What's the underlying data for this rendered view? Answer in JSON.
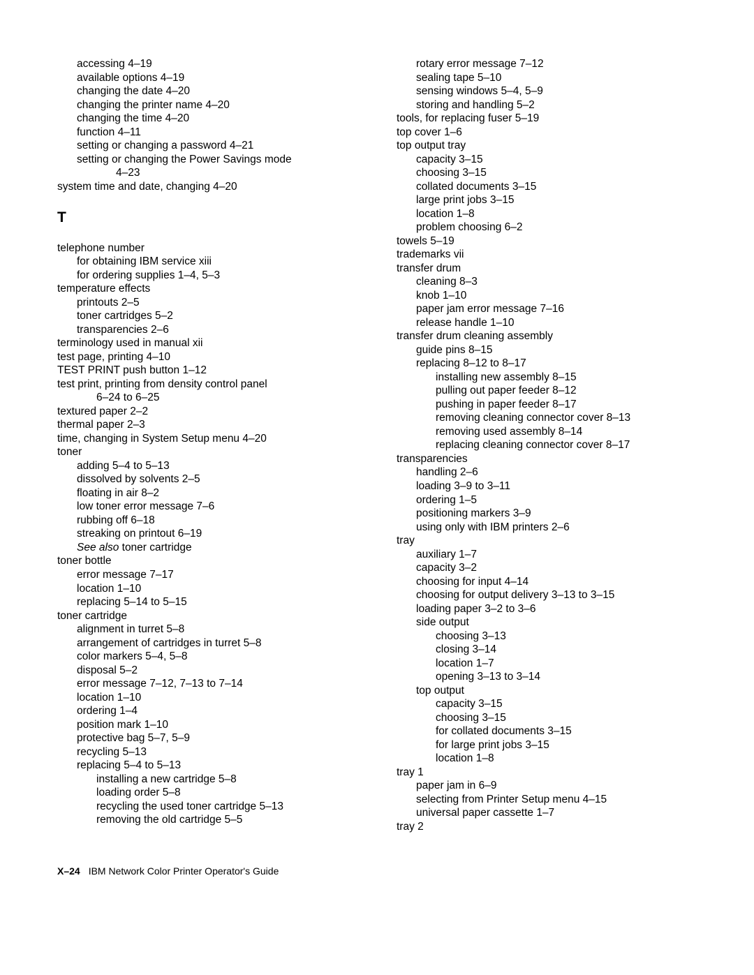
{
  "footer": {
    "page_number": "X–24",
    "title": "IBM Network Color Printer Operator's Guide"
  },
  "section_letter": "T",
  "left_block_1": [
    {
      "l": 1,
      "t": "accessing 4–19"
    },
    {
      "l": 1,
      "t": "available options 4–19"
    },
    {
      "l": 1,
      "t": "changing the date 4–20"
    },
    {
      "l": 1,
      "t": "changing the printer name 4–20"
    },
    {
      "l": 1,
      "t": "changing the time 4–20"
    },
    {
      "l": 1,
      "t": "function 4–11"
    },
    {
      "l": 1,
      "t": "setting or changing a password 4–21"
    },
    {
      "l": 1,
      "t": "setting or changing the Power Savings mode"
    },
    {
      "l": 3,
      "t": "4–23"
    },
    {
      "l": 0,
      "t": "system time and date, changing 4–20"
    }
  ],
  "left_block_2": [
    {
      "l": 0,
      "t": "telephone number"
    },
    {
      "l": 1,
      "t": "for obtaining IBM service xiii"
    },
    {
      "l": 1,
      "t": "for ordering supplies 1–4, 5–3"
    },
    {
      "l": 0,
      "t": "temperature effects"
    },
    {
      "l": 1,
      "t": "printouts 2–5"
    },
    {
      "l": 1,
      "t": "toner cartridges 5–2"
    },
    {
      "l": 1,
      "t": "transparencies 2–6"
    },
    {
      "l": 0,
      "t": "terminology used in manual xii"
    },
    {
      "l": 0,
      "t": "test page, printing 4–10"
    },
    {
      "l": 0,
      "t": "TEST PRINT push button 1–12"
    },
    {
      "l": 0,
      "t": "test print, printing from density control panel"
    },
    {
      "l": 2,
      "t": "6–24 to 6–25"
    },
    {
      "l": 0,
      "t": "textured paper 2–2"
    },
    {
      "l": 0,
      "t": "thermal paper 2–3"
    },
    {
      "l": 0,
      "t": "time, changing in System Setup menu 4–20"
    },
    {
      "l": 0,
      "t": "toner"
    },
    {
      "l": 1,
      "t": "adding 5–4 to 5–13"
    },
    {
      "l": 1,
      "t": "dissolved by solvents 2–5"
    },
    {
      "l": 1,
      "t": "floating in air 8–2"
    },
    {
      "l": 1,
      "t": "low toner error message 7–6"
    },
    {
      "l": 1,
      "t": "rubbing off 6–18"
    },
    {
      "l": 1,
      "t": "streaking on printout 6–19"
    },
    {
      "l": 1,
      "italic_prefix": "See also",
      "t": " toner cartridge"
    },
    {
      "l": 0,
      "t": "toner bottle"
    },
    {
      "l": 1,
      "t": "error message 7–17"
    },
    {
      "l": 1,
      "t": "location 1–10"
    },
    {
      "l": 1,
      "t": "replacing 5–14 to 5–15"
    },
    {
      "l": 0,
      "t": "toner cartridge"
    },
    {
      "l": 1,
      "t": "alignment in turret 5–8"
    },
    {
      "l": 1,
      "t": "arrangement of cartridges in turret 5–8"
    },
    {
      "l": 1,
      "t": "color markers 5–4, 5–8"
    },
    {
      "l": 1,
      "t": "disposal 5–2"
    },
    {
      "l": 1,
      "t": "error message 7–12, 7–13 to 7–14"
    },
    {
      "l": 1,
      "t": "location 1–10"
    },
    {
      "l": 1,
      "t": "ordering 1–4"
    },
    {
      "l": 1,
      "t": "position mark 1–10"
    },
    {
      "l": 1,
      "t": "protective bag 5–7, 5–9"
    },
    {
      "l": 1,
      "t": "recycling 5–13"
    },
    {
      "l": 1,
      "t": "replacing 5–4 to 5–13"
    },
    {
      "l": 2,
      "t": "installing a new cartridge 5–8"
    },
    {
      "l": 2,
      "t": "loading order 5–8"
    },
    {
      "l": 2,
      "t": "recycling the used toner cartridge 5–13"
    },
    {
      "l": 2,
      "t": "removing the old cartridge 5–5"
    }
  ],
  "right_block": [
    {
      "l": 1,
      "t": "rotary error message 7–12"
    },
    {
      "l": 1,
      "t": "sealing tape 5–10"
    },
    {
      "l": 1,
      "t": "sensing windows 5–4, 5–9"
    },
    {
      "l": 1,
      "t": "storing and handling 5–2"
    },
    {
      "l": 0,
      "t": "tools, for replacing fuser 5–19"
    },
    {
      "l": 0,
      "t": "top cover 1–6"
    },
    {
      "l": 0,
      "t": "top output tray"
    },
    {
      "l": 1,
      "t": "capacity 3–15"
    },
    {
      "l": 1,
      "t": "choosing 3–15"
    },
    {
      "l": 1,
      "t": "collated documents 3–15"
    },
    {
      "l": 1,
      "t": "large print jobs 3–15"
    },
    {
      "l": 1,
      "t": "location 1–8"
    },
    {
      "l": 1,
      "t": "problem choosing 6–2"
    },
    {
      "l": 0,
      "t": "towels 5–19"
    },
    {
      "l": 0,
      "t": "trademarks vii"
    },
    {
      "l": 0,
      "t": "transfer drum"
    },
    {
      "l": 1,
      "t": "cleaning 8–3"
    },
    {
      "l": 1,
      "t": "knob 1–10"
    },
    {
      "l": 1,
      "t": "paper jam error message 7–16"
    },
    {
      "l": 1,
      "t": "release handle 1–10"
    },
    {
      "l": 0,
      "t": "transfer drum cleaning assembly"
    },
    {
      "l": 1,
      "t": "guide pins 8–15"
    },
    {
      "l": 1,
      "t": "replacing 8–12 to 8–17"
    },
    {
      "l": 2,
      "t": "installing new assembly 8–15"
    },
    {
      "l": 2,
      "t": "pulling out paper feeder 8–12"
    },
    {
      "l": 2,
      "t": "pushing in paper feeder 8–17"
    },
    {
      "l": 2,
      "t": "removing cleaning connector cover 8–13"
    },
    {
      "l": 2,
      "t": "removing used assembly 8–14"
    },
    {
      "l": 2,
      "t": "replacing cleaning connector cover 8–17"
    },
    {
      "l": 0,
      "t": "transparencies"
    },
    {
      "l": 1,
      "t": "handling 2–6"
    },
    {
      "l": 1,
      "t": "loading 3–9 to 3–11"
    },
    {
      "l": 1,
      "t": "ordering 1–5"
    },
    {
      "l": 1,
      "t": "positioning markers 3–9"
    },
    {
      "l": 1,
      "t": "using only with IBM printers 2–6"
    },
    {
      "l": 0,
      "t": "tray"
    },
    {
      "l": 1,
      "t": "auxiliary 1–7"
    },
    {
      "l": 1,
      "t": "capacity 3–2"
    },
    {
      "l": 1,
      "t": "choosing for input 4–14"
    },
    {
      "l": 1,
      "t": "choosing for output delivery 3–13 to 3–15"
    },
    {
      "l": 1,
      "t": "loading paper 3–2 to 3–6"
    },
    {
      "l": 1,
      "t": "side output"
    },
    {
      "l": 2,
      "t": "choosing 3–13"
    },
    {
      "l": 2,
      "t": "closing 3–14"
    },
    {
      "l": 2,
      "t": "location 1–7"
    },
    {
      "l": 2,
      "t": "opening 3–13 to 3–14"
    },
    {
      "l": 1,
      "t": "top output"
    },
    {
      "l": 2,
      "t": "capacity 3–15"
    },
    {
      "l": 2,
      "t": "choosing 3–15"
    },
    {
      "l": 2,
      "t": "for collated documents 3–15"
    },
    {
      "l": 2,
      "t": "for large print jobs 3–15"
    },
    {
      "l": 2,
      "t": "location 1–8"
    },
    {
      "l": 0,
      "t": "tray 1"
    },
    {
      "l": 1,
      "t": "paper jam in 6–9"
    },
    {
      "l": 1,
      "t": "selecting from Printer Setup menu 4–15"
    },
    {
      "l": 1,
      "t": "universal paper cassette 1–7"
    },
    {
      "l": 0,
      "t": "tray 2"
    }
  ]
}
